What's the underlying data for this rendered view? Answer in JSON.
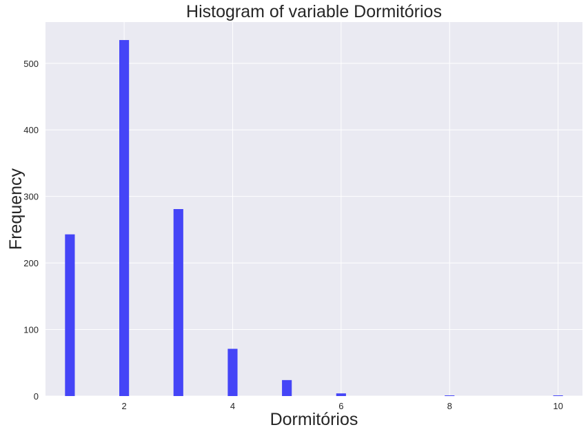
{
  "chart_data": {
    "type": "bar",
    "title": "Histogram of variable Dormitórios",
    "xlabel": "Dormitórios",
    "ylabel": "Frequency",
    "xlim": [
      0.55,
      10.45
    ],
    "ylim": [
      0,
      562
    ],
    "grid": true,
    "bin_width": 0.18,
    "x_ticks": [
      2,
      4,
      6,
      8,
      10
    ],
    "y_ticks": [
      0,
      100,
      200,
      300,
      400,
      500
    ],
    "bars": [
      {
        "x": 1,
        "value": 243
      },
      {
        "x": 2,
        "value": 535
      },
      {
        "x": 3,
        "value": 281
      },
      {
        "x": 4,
        "value": 71
      },
      {
        "x": 5,
        "value": 24
      },
      {
        "x": 6,
        "value": 4
      },
      {
        "x": 8,
        "value": 1
      },
      {
        "x": 10,
        "value": 1
      }
    ]
  },
  "colors": {
    "plot_background": "#eaeaf2",
    "grid": "#ffffff",
    "bar_fill": "#4545f7"
  }
}
